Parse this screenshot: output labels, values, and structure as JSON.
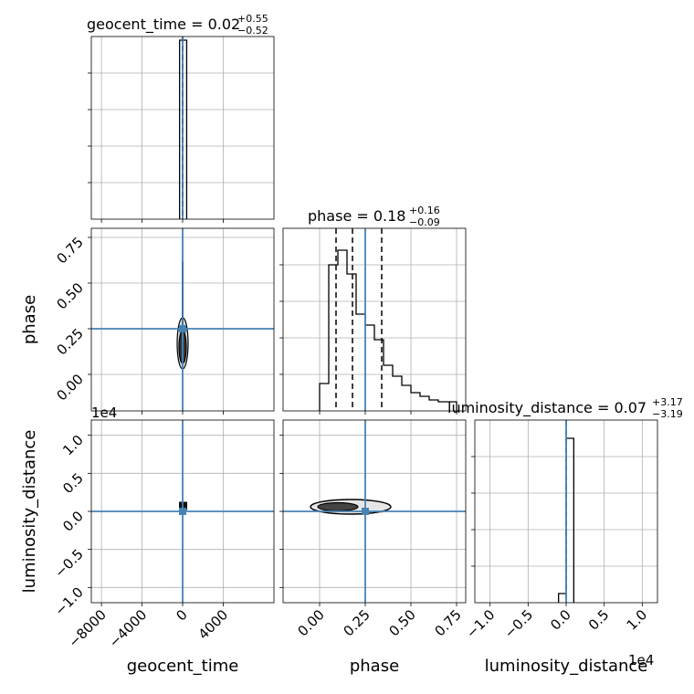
{
  "chart_data": {
    "type": "corner",
    "parameters": [
      "geocent_time",
      "phase",
      "luminosity_distance"
    ],
    "truths": {
      "geocent_time": 0,
      "phase": 0.25,
      "luminosity_distance": 0
    },
    "colors": {
      "truth": "#4682b4",
      "hist": "#000000",
      "grid": "#b0b0b0",
      "scatter": "#bbbbbb"
    },
    "grid": true,
    "diagonal": [
      {
        "param": "geocent_time",
        "title_main": "geocent_time = 0.02",
        "title_sup": "+0.55",
        "title_sub": "−0.52",
        "xlim": [
          -9000,
          9000
        ],
        "ylim": [
          0,
          1.0
        ],
        "bins": [
          [
            -300,
            0,
            0.98
          ],
          [
            0,
            400,
            0.98
          ]
        ],
        "quantile_lines": [
          -0.5,
          0.02,
          0.57
        ]
      },
      {
        "param": "phase",
        "title_main": "phase = 0.18",
        "title_sup": "+0.16",
        "title_sub": "−0.09",
        "xlim": [
          -0.2,
          0.8
        ],
        "ylim": [
          0,
          1.0
        ],
        "bins": [
          [
            0.0,
            0.05,
            0.15
          ],
          [
            0.05,
            0.1,
            0.8
          ],
          [
            0.1,
            0.15,
            0.88
          ],
          [
            0.15,
            0.2,
            0.75
          ],
          [
            0.2,
            0.25,
            0.53
          ],
          [
            0.25,
            0.3,
            0.47
          ],
          [
            0.3,
            0.35,
            0.39
          ],
          [
            0.35,
            0.4,
            0.25
          ],
          [
            0.4,
            0.45,
            0.19
          ],
          [
            0.45,
            0.5,
            0.14
          ],
          [
            0.5,
            0.55,
            0.1
          ],
          [
            0.55,
            0.6,
            0.08
          ],
          [
            0.6,
            0.65,
            0.06
          ],
          [
            0.65,
            0.75,
            0.05
          ]
        ],
        "quantile_lines": [
          0.09,
          0.18,
          0.34
        ]
      },
      {
        "param": "luminosity_distance",
        "title_main": "luminosity_distance = 0.07",
        "title_sup": "+3.17",
        "title_sub": "−3.19",
        "xlim": [
          -1.2,
          1.2
        ],
        "ylim": [
          0,
          1.0
        ],
        "bins": [
          [
            -0.1,
            0.0,
            0.05
          ],
          [
            0.0,
            0.1,
            0.9
          ]
        ],
        "quantile_lines": [
          0.0
        ]
      }
    ],
    "offset_label": "1e4",
    "ticks": {
      "geocent_time": [
        {
          "v": -8000,
          "l": "−8000"
        },
        {
          "v": -4000,
          "l": "−4000"
        },
        {
          "v": 0,
          "l": "0"
        },
        {
          "v": 4000,
          "l": "4000"
        }
      ],
      "phase": [
        {
          "v": 0.0,
          "l": "0.00"
        },
        {
          "v": 0.25,
          "l": "0.25"
        },
        {
          "v": 0.5,
          "l": "0.50"
        },
        {
          "v": 0.75,
          "l": "0.75"
        }
      ],
      "luminosity_distance_y": [
        {
          "v": -1.0,
          "l": "−1.0"
        },
        {
          "v": -0.5,
          "l": "−0.5"
        },
        {
          "v": 0.0,
          "l": "0.0"
        },
        {
          "v": 0.5,
          "l": "0.5"
        },
        {
          "v": 1.0,
          "l": "1.0"
        }
      ],
      "luminosity_distance_x": [
        {
          "v": -1.0,
          "l": "−1.0"
        },
        {
          "v": -0.5,
          "l": "−0.5"
        },
        {
          "v": 0.0,
          "l": "0.0"
        },
        {
          "v": 0.5,
          "l": "0.5"
        },
        {
          "v": 1.0,
          "l": "1.0"
        }
      ]
    },
    "axis_labels": {
      "x": [
        "geocent_time",
        "phase",
        "luminosity_distance"
      ],
      "y": [
        "phase",
        "luminosity_distance"
      ]
    }
  }
}
